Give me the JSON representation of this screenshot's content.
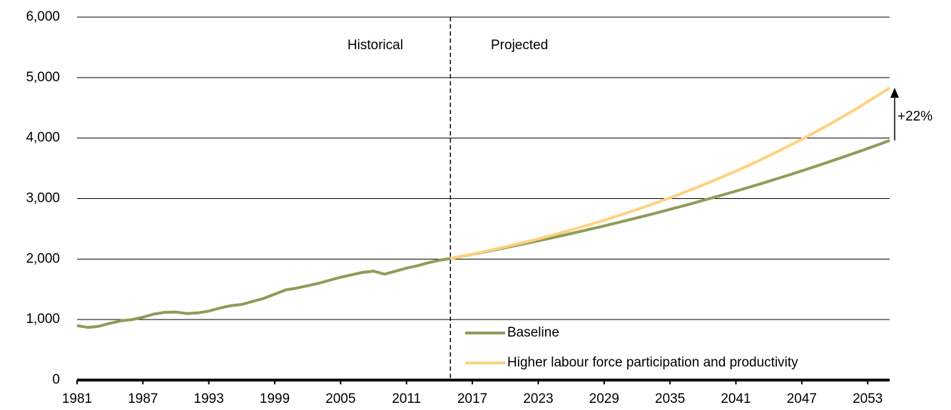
{
  "chart_data": {
    "type": "line",
    "x": [
      1981,
      1982,
      1983,
      1984,
      1985,
      1986,
      1987,
      1988,
      1989,
      1990,
      1991,
      1992,
      1993,
      1994,
      1995,
      1996,
      1997,
      1998,
      1999,
      2000,
      2001,
      2002,
      2003,
      2004,
      2005,
      2006,
      2007,
      2008,
      2009,
      2010,
      2011,
      2012,
      2013,
      2014,
      2015,
      2016,
      2017,
      2018,
      2019,
      2020,
      2021,
      2022,
      2023,
      2024,
      2025,
      2026,
      2027,
      2028,
      2029,
      2030,
      2031,
      2032,
      2033,
      2034,
      2035,
      2036,
      2037,
      2038,
      2039,
      2040,
      2041,
      2042,
      2043,
      2044,
      2045,
      2046,
      2047,
      2048,
      2049,
      2050,
      2051,
      2052,
      2053,
      2054,
      2055
    ],
    "series": [
      {
        "name": "Baseline",
        "color": "#8f9c5a",
        "values": [
          900,
          870,
          890,
          940,
          980,
          1000,
          1040,
          1090,
          1120,
          1125,
          1100,
          1110,
          1140,
          1190,
          1230,
          1250,
          1300,
          1350,
          1420,
          1490,
          1520,
          1560,
          1600,
          1650,
          1700,
          1740,
          1780,
          1800,
          1750,
          1800,
          1850,
          1890,
          1940,
          1980,
          2010,
          2044,
          2079,
          2115,
          2151,
          2188,
          2225,
          2263,
          2302,
          2341,
          2381,
          2422,
          2464,
          2506,
          2549,
          2592,
          2637,
          2682,
          2727,
          2774,
          2822,
          2870,
          2919,
          2969,
          3020,
          3071,
          3124,
          3177,
          3231,
          3287,
          3343,
          3400,
          3458,
          3518,
          3578,
          3639,
          3701,
          3764,
          3829,
          3894,
          3961
        ]
      },
      {
        "name": "Higher labour force participation and productivity",
        "color": "#ffd27f",
        "values": [
          null,
          null,
          null,
          null,
          null,
          null,
          null,
          null,
          null,
          null,
          null,
          null,
          null,
          null,
          null,
          null,
          null,
          null,
          null,
          null,
          null,
          null,
          null,
          null,
          null,
          null,
          null,
          null,
          null,
          null,
          null,
          null,
          null,
          null,
          2010,
          2045,
          2082,
          2121,
          2161,
          2202,
          2245,
          2289,
          2335,
          2382,
          2431,
          2481,
          2534,
          2588,
          2643,
          2700,
          2759,
          2820,
          2882,
          2947,
          3013,
          3082,
          3152,
          3225,
          3299,
          3375,
          3455,
          3536,
          3619,
          3706,
          3794,
          3886,
          3979,
          4077,
          4176,
          4277,
          4382,
          4489,
          4601,
          4714,
          4832
        ]
      }
    ],
    "xlim": [
      1981,
      2055
    ],
    "xticks": [
      1981,
      1987,
      1993,
      1999,
      2005,
      2011,
      2017,
      2023,
      2029,
      2035,
      2041,
      2047,
      2053
    ],
    "ylim": [
      0,
      6000
    ],
    "yticks": [
      0,
      {
        "value": 1000,
        "label": "1,000"
      },
      {
        "value": 2000,
        "label": "2,000"
      },
      {
        "value": 3000,
        "label": "3,000"
      },
      {
        "value": 4000,
        "label": "4,000"
      },
      {
        "value": 5000,
        "label": "5,000"
      },
      {
        "value": 6000,
        "label": "6,000"
      }
    ],
    "grid": true,
    "divider_x": 2015,
    "annotations": {
      "historical": "Historical",
      "projected": "Projected",
      "change": "+22%"
    },
    "legend": "lower center"
  }
}
